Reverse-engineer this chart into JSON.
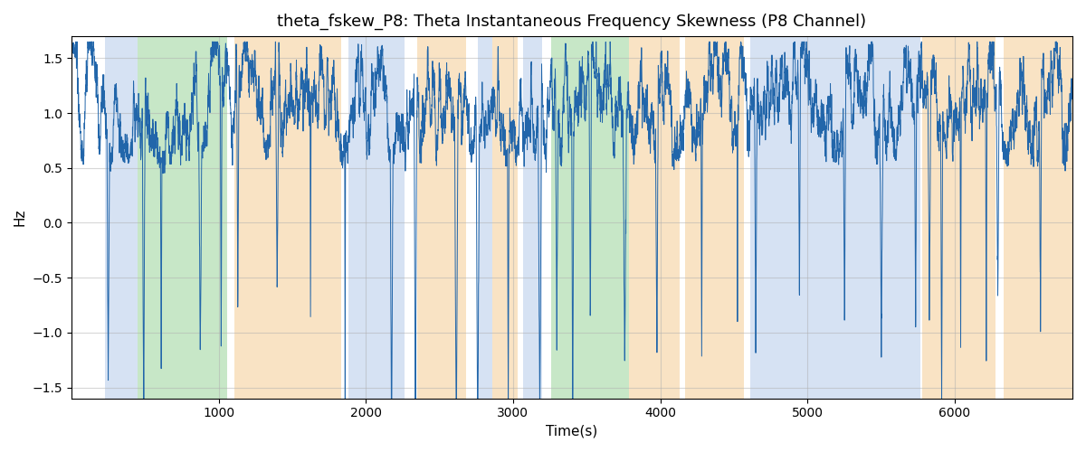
{
  "title": "theta_fskew_P8: Theta Instantaneous Frequency Skewness (P8 Channel)",
  "xlabel": "Time(s)",
  "ylabel": "Hz",
  "xlim": [
    0,
    6800
  ],
  "ylim": [
    -1.6,
    1.7
  ],
  "line_color": "#2266aa",
  "line_width": 0.7,
  "background_color": "#ffffff",
  "grid_color": "#b0b0b0",
  "grid_alpha": 0.5,
  "title_fontsize": 13,
  "label_fontsize": 11,
  "regions": [
    {
      "start": 230,
      "end": 450,
      "color": "#aec6e8",
      "alpha": 0.5
    },
    {
      "start": 450,
      "end": 1060,
      "color": "#90d090",
      "alpha": 0.5
    },
    {
      "start": 1110,
      "end": 1830,
      "color": "#f5c98a",
      "alpha": 0.5
    },
    {
      "start": 1880,
      "end": 2260,
      "color": "#aec6e8",
      "alpha": 0.5
    },
    {
      "start": 2350,
      "end": 2680,
      "color": "#f5c98a",
      "alpha": 0.5
    },
    {
      "start": 2760,
      "end": 2860,
      "color": "#aec6e8",
      "alpha": 0.5
    },
    {
      "start": 2860,
      "end": 3030,
      "color": "#f5c98a",
      "alpha": 0.5
    },
    {
      "start": 3070,
      "end": 3200,
      "color": "#aec6e8",
      "alpha": 0.5
    },
    {
      "start": 3260,
      "end": 3790,
      "color": "#90d090",
      "alpha": 0.5
    },
    {
      "start": 3790,
      "end": 4130,
      "color": "#f5c98a",
      "alpha": 0.5
    },
    {
      "start": 4170,
      "end": 4570,
      "color": "#f5c98a",
      "alpha": 0.5
    },
    {
      "start": 4610,
      "end": 5770,
      "color": "#aec6e8",
      "alpha": 0.5
    },
    {
      "start": 5780,
      "end": 6280,
      "color": "#f5c98a",
      "alpha": 0.5
    },
    {
      "start": 6330,
      "end": 6800,
      "color": "#f5c98a",
      "alpha": 0.5
    }
  ],
  "seed": 0,
  "n_points": 6800,
  "t_start": 0,
  "t_end": 6800
}
